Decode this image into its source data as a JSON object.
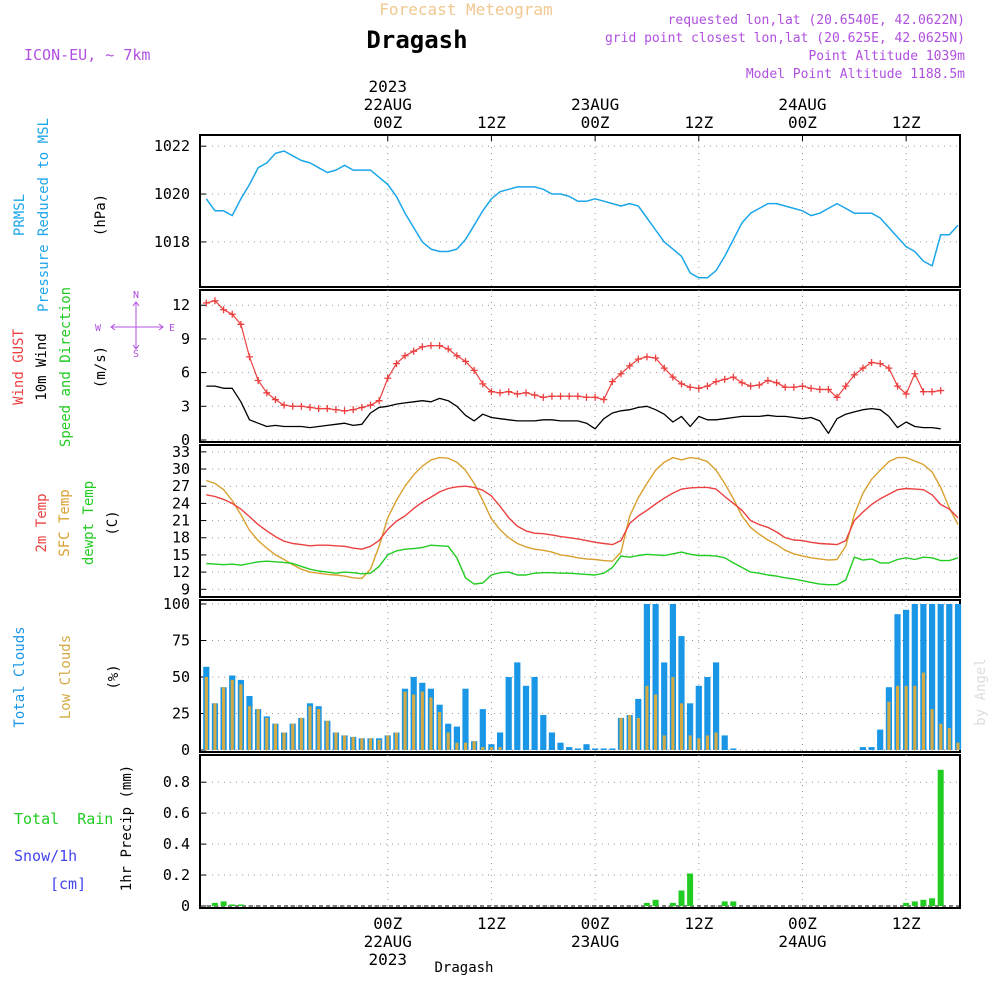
{
  "header": {
    "super_title": "Forecast Meteogram",
    "location": "Dragash",
    "model": "ICON-EU, ~ 7km",
    "requested": "requested lon,lat (20.6540E, 42.0622N)",
    "grid_point": "grid point closest lon,lat (20.625E, 42.0625N)",
    "point_altitude": "Point Altitude 1039m",
    "model_altitude": "Model Point Altitude 1188.5m"
  },
  "time_axis": {
    "top_labels": [
      {
        "line1": "2023",
        "line2": "22AUG",
        "line3": "00Z",
        "hour": 21
      },
      {
        "line1": "",
        "line2": "",
        "line3": "12Z",
        "hour": 33
      },
      {
        "line1": "",
        "line2": "23AUG",
        "line3": "00Z",
        "hour": 45
      },
      {
        "line1": "",
        "line2": "",
        "line3": "12Z",
        "hour": 57
      },
      {
        "line1": "",
        "line2": "24AUG",
        "line3": "00Z",
        "hour": 69
      },
      {
        "line1": "",
        "line2": "",
        "line3": "12Z",
        "hour": 81
      }
    ],
    "bottom_labels": [
      {
        "line1": "00Z",
        "line2": "22AUG",
        "line3": "2023",
        "hour": 21
      },
      {
        "line1": "12Z",
        "line2": "",
        "line3": "",
        "hour": 33
      },
      {
        "line1": "00Z",
        "line2": "23AUG",
        "line3": "",
        "hour": 45
      },
      {
        "line1": "12Z",
        "line2": "",
        "line3": "",
        "hour": 57
      },
      {
        "line1": "00Z",
        "line2": "24AUG",
        "line3": "",
        "hour": 69
      },
      {
        "line1": "12Z",
        "line2": "",
        "line3": "",
        "hour": 81
      }
    ],
    "footer": "Dragash",
    "watermark": "by Angel"
  },
  "colors": {
    "pressure": "#1ba6ea",
    "gust": "#ec4040",
    "wind10m": "#000000",
    "temp2m": "#ec4040",
    "sfc_temp": "#d9a030",
    "dewpt": "#22cc22",
    "total_clouds": "#1a96e6",
    "low_clouds": "#d4aa44",
    "rain": "#22cc22",
    "snow": "#4444ee",
    "header_purple": "#b050e0",
    "title_orange": "#f0c890"
  },
  "chart_data": [
    {
      "type": "line",
      "panel": "pressure",
      "label_lines": [
        "PRMSL",
        "Pressure Reduced to MSL"
      ],
      "ylabel": "(hPa)",
      "ylim": [
        1016.2,
        1022.3
      ],
      "yticks": [
        1018,
        1020,
        1022
      ],
      "x_hours_start": 0,
      "x_hours_step": 1,
      "series": [
        {
          "values": [
            1019.8,
            1019.3,
            1019.3,
            1019.1,
            1019.8,
            1020.4,
            1021.1,
            1021.3,
            1021.7,
            1021.8,
            1021.6,
            1021.4,
            1021.3,
            1021.1,
            1020.9,
            1021.0,
            1021.2,
            1021.0,
            1021.0,
            1021.0,
            1020.7,
            1020.4,
            1019.9,
            1019.2,
            1018.6,
            1018.0,
            1017.7,
            1017.6,
            1017.6,
            1017.7,
            1018.1,
            1018.7,
            1019.3,
            1019.8,
            1020.1,
            1020.2,
            1020.3,
            1020.3,
            1020.3,
            1020.2,
            1020.0,
            1020.0,
            1019.9,
            1019.7,
            1019.7,
            1019.8,
            1019.7,
            1019.6,
            1019.5,
            1019.6,
            1019.5,
            1019.0,
            1018.5,
            1018.0,
            1017.7,
            1017.4,
            1016.7,
            1016.5,
            1016.5,
            1016.8,
            1017.4,
            1018.1,
            1018.8,
            1019.2,
            1019.4,
            1019.6,
            1019.6,
            1019.5,
            1019.4,
            1019.3,
            1019.1,
            1019.2,
            1019.4,
            1019.6,
            1019.4,
            1019.2,
            1019.2,
            1019.2,
            1019.0,
            1018.6,
            1018.2,
            1017.8,
            1017.6,
            1017.2,
            1017.0,
            1018.3,
            1018.3,
            1018.7
          ]
        }
      ]
    },
    {
      "type": "line",
      "panel": "wind",
      "label_lines": [
        "Wind GUST",
        "10m Wind",
        "Speed and Direction"
      ],
      "ylabel": "(m/s)",
      "compass": {
        "n": "N",
        "s": "S",
        "w": "W",
        "e": "E"
      },
      "ylim": [
        0,
        13
      ],
      "yticks": [
        0,
        3,
        6,
        9,
        12
      ],
      "x_hours_start": 0,
      "x_hours_step": 1,
      "series": [
        {
          "name": "Wind GUST",
          "values": [
            12.2,
            12.4,
            11.6,
            11.2,
            10.3,
            7.4,
            5.3,
            4.2,
            3.6,
            3.1,
            3.0,
            3.0,
            2.9,
            2.8,
            2.8,
            2.7,
            2.6,
            2.7,
            2.9,
            3.1,
            3.5,
            5.5,
            6.8,
            7.5,
            7.9,
            8.3,
            8.4,
            8.4,
            8.1,
            7.5,
            7.0,
            6.2,
            5.0,
            4.3,
            4.2,
            4.3,
            4.1,
            4.2,
            4.0,
            3.8,
            3.9,
            3.9,
            3.9,
            3.9,
            3.8,
            3.8,
            3.6,
            5.2,
            5.9,
            6.6,
            7.2,
            7.4,
            7.3,
            6.4,
            5.6,
            5.0,
            4.7,
            4.6,
            4.8,
            5.2,
            5.4,
            5.6,
            5.1,
            4.8,
            4.9,
            5.3,
            5.1,
            4.7,
            4.7,
            4.8,
            4.6,
            4.5,
            4.5,
            3.8,
            4.8,
            5.8,
            6.4,
            6.9,
            6.8,
            6.4,
            4.8,
            4.1,
            5.9,
            4.3,
            4.3,
            4.4
          ]
        },
        {
          "name": "10m Wind",
          "values": [
            4.8,
            4.8,
            4.6,
            4.6,
            3.4,
            1.8,
            1.5,
            1.2,
            1.3,
            1.2,
            1.2,
            1.2,
            1.1,
            1.2,
            1.3,
            1.4,
            1.5,
            1.3,
            1.4,
            2.4,
            2.9,
            3.0,
            3.2,
            3.3,
            3.4,
            3.5,
            3.4,
            3.7,
            3.5,
            3.0,
            2.2,
            1.7,
            2.3,
            2.0,
            1.9,
            1.8,
            1.7,
            1.7,
            1.7,
            1.8,
            1.8,
            1.7,
            1.7,
            1.7,
            1.5,
            1.0,
            1.9,
            2.4,
            2.6,
            2.7,
            2.9,
            3.0,
            2.7,
            2.3,
            1.6,
            2.1,
            1.2,
            2.1,
            1.8,
            1.8,
            1.9,
            2.0,
            2.1,
            2.1,
            2.1,
            2.2,
            2.1,
            2.1,
            2.0,
            1.9,
            2.0,
            1.7,
            0.6,
            1.9,
            2.3,
            2.5,
            2.7,
            2.8,
            2.7,
            2.1,
            1.1,
            1.6,
            1.2,
            1.1,
            1.1,
            1.0
          ]
        }
      ]
    },
    {
      "type": "line",
      "panel": "temperature",
      "label_lines": [
        "2m Temp",
        "SFC Temp",
        "dewpt Temp"
      ],
      "ylabel": "(C)",
      "ylim": [
        8,
        33.5
      ],
      "yticks": [
        9,
        12,
        15,
        18,
        21,
        24,
        27,
        30,
        33
      ],
      "x_hours_start": 0,
      "x_hours_step": 1,
      "series": [
        {
          "name": "2m Temp",
          "values": [
            25.5,
            25.2,
            24.7,
            24.0,
            23.0,
            21.7,
            20.3,
            19.2,
            18.2,
            17.4,
            17.0,
            16.8,
            16.6,
            16.7,
            16.7,
            16.6,
            16.5,
            16.2,
            16.0,
            16.5,
            17.5,
            19.5,
            20.9,
            21.8,
            23.1,
            24.2,
            25.1,
            26.0,
            26.6,
            26.9,
            27.0,
            26.8,
            26.3,
            25.3,
            23.5,
            21.5,
            20.0,
            19.2,
            18.8,
            18.7,
            18.5,
            18.2,
            18.0,
            17.8,
            17.5,
            17.2,
            17.0,
            16.8,
            17.5,
            20.5,
            21.8,
            22.8,
            23.9,
            24.9,
            25.8,
            26.5,
            26.7,
            26.8,
            26.8,
            26.5,
            25.2,
            24.0,
            22.8,
            21.0,
            20.3,
            19.8,
            19.0,
            18.0,
            17.6,
            17.5,
            17.2,
            17.0,
            16.9,
            16.8,
            17.5,
            21.0,
            22.5,
            23.8,
            24.8,
            25.6,
            26.4,
            26.6,
            26.5,
            26.4,
            25.5,
            23.8,
            23.0,
            21.5
          ]
        },
        {
          "name": "SFC Temp",
          "values": [
            28.0,
            27.5,
            26.4,
            24.5,
            22.0,
            19.3,
            17.5,
            16.2,
            15.0,
            14.2,
            13.3,
            12.5,
            12.0,
            11.8,
            11.6,
            11.5,
            11.3,
            11.0,
            10.9,
            12.5,
            16.5,
            21.5,
            24.5,
            27.0,
            29.0,
            30.5,
            31.6,
            32.0,
            31.9,
            31.2,
            29.8,
            27.5,
            24.5,
            21.3,
            19.4,
            18.0,
            17.0,
            16.4,
            16.0,
            15.8,
            15.5,
            15.0,
            14.8,
            14.5,
            14.3,
            14.2,
            14.0,
            13.9,
            15.5,
            21.8,
            25.0,
            27.5,
            29.8,
            31.2,
            32.0,
            31.6,
            32.0,
            31.8,
            31.3,
            29.8,
            27.5,
            24.8,
            21.8,
            19.8,
            18.6,
            17.6,
            16.8,
            15.8,
            15.2,
            14.8,
            14.5,
            14.3,
            14.1,
            14.2,
            16.5,
            22.0,
            25.8,
            28.2,
            29.8,
            31.3,
            32.0,
            32.0,
            31.4,
            30.8,
            29.5,
            26.8,
            23.2,
            20.3
          ]
        },
        {
          "name": "dewpt Temp",
          "values": [
            13.5,
            13.4,
            13.3,
            13.4,
            13.2,
            13.5,
            13.8,
            13.9,
            13.8,
            13.7,
            13.5,
            13.0,
            12.5,
            12.2,
            12.0,
            11.8,
            12.0,
            11.9,
            11.7,
            11.8,
            13.0,
            15.0,
            15.7,
            16.0,
            16.1,
            16.3,
            16.7,
            16.6,
            16.5,
            14.5,
            11.0,
            9.9,
            10.1,
            11.5,
            11.9,
            12.0,
            11.5,
            11.5,
            11.8,
            11.9,
            11.9,
            11.8,
            11.8,
            11.7,
            11.6,
            11.5,
            11.8,
            12.8,
            14.8,
            14.6,
            14.9,
            15.1,
            15.0,
            14.9,
            15.2,
            15.5,
            15.1,
            14.9,
            14.9,
            14.8,
            14.5,
            13.6,
            12.8,
            12.0,
            11.8,
            11.5,
            11.3,
            11.0,
            10.8,
            10.5,
            10.2,
            9.9,
            9.8,
            9.8,
            10.6,
            14.6,
            14.1,
            14.3,
            13.6,
            13.6,
            14.2,
            14.5,
            14.2,
            14.6,
            14.5,
            14.0,
            14.0,
            14.5
          ]
        }
      ]
    },
    {
      "type": "bar",
      "panel": "clouds",
      "label_lines": [
        "Total Clouds",
        "Low Clouds"
      ],
      "ylabel": "(%)",
      "ylim": [
        0,
        100
      ],
      "yticks": [
        0,
        25,
        50,
        75,
        100
      ],
      "x_hours_start": 0,
      "x_hours_step": 1,
      "series": [
        {
          "name": "Total Clouds",
          "values": [
            57,
            32,
            43,
            51,
            48,
            37,
            28,
            23,
            18,
            12,
            18,
            22,
            32,
            30,
            20,
            12,
            10,
            9,
            8,
            8,
            8,
            10,
            12,
            42,
            50,
            46,
            42,
            31,
            18,
            16,
            42,
            6,
            28,
            4,
            12,
            50,
            60,
            44,
            50,
            24,
            12,
            5,
            2,
            1,
            4,
            1,
            1,
            1,
            22,
            24,
            35,
            100,
            100,
            60,
            100,
            78,
            32,
            44,
            50,
            60,
            10,
            1,
            0,
            0,
            0,
            0,
            0,
            0,
            0,
            0,
            0,
            0,
            0,
            0,
            0,
            0,
            2,
            2,
            14,
            43,
            93,
            96,
            100,
            100,
            100,
            100,
            100,
            100
          ]
        },
        {
          "name": "Low Clouds",
          "values": [
            50,
            32,
            43,
            48,
            45,
            30,
            28,
            22,
            18,
            12,
            18,
            22,
            30,
            28,
            20,
            12,
            10,
            9,
            8,
            8,
            7,
            10,
            12,
            40,
            38,
            40,
            36,
            26,
            12,
            5,
            5,
            6,
            2,
            2,
            2,
            0,
            0,
            0,
            0,
            0,
            0,
            0,
            0,
            0,
            0,
            0,
            0,
            0,
            22,
            24,
            22,
            44,
            38,
            10,
            50,
            32,
            10,
            8,
            10,
            12,
            0,
            0,
            0,
            0,
            0,
            0,
            0,
            0,
            0,
            0,
            0,
            0,
            0,
            0,
            0,
            0,
            0,
            0,
            0,
            33,
            44,
            44,
            44,
            53,
            28,
            18,
            15,
            5
          ]
        }
      ]
    },
    {
      "type": "bar",
      "panel": "precipitation",
      "label_lines": [
        "Total  Rain",
        "Snow/1h",
        "[cm]"
      ],
      "ylabel": "1hr Precip (mm)",
      "ylim": [
        0,
        0.95
      ],
      "yticks": [
        0,
        0.2,
        0.4,
        0.6,
        0.8
      ],
      "x_hours_start": 0,
      "x_hours_step": 1,
      "series": [
        {
          "name": "Total Rain",
          "values": [
            0,
            0.02,
            0.03,
            0.01,
            0.01,
            0,
            0,
            0,
            0,
            0,
            0,
            0,
            0,
            0,
            0,
            0,
            0,
            0,
            0,
            0,
            0,
            0,
            0,
            0,
            0,
            0,
            0,
            0,
            0,
            0,
            0,
            0,
            0,
            0,
            0,
            0,
            0,
            0,
            0,
            0,
            0,
            0,
            0,
            0,
            0,
            0,
            0,
            0,
            0,
            0,
            0,
            0.02,
            0.04,
            0,
            0.02,
            0.1,
            0.21,
            0,
            0,
            0,
            0.03,
            0.03,
            0,
            0,
            0,
            0,
            0,
            0,
            0,
            0,
            0,
            0,
            0,
            0,
            0,
            0,
            0,
            0,
            0,
            0,
            0,
            0.02,
            0.03,
            0.04,
            0.05,
            0.88,
            0,
            0
          ]
        }
      ]
    }
  ]
}
